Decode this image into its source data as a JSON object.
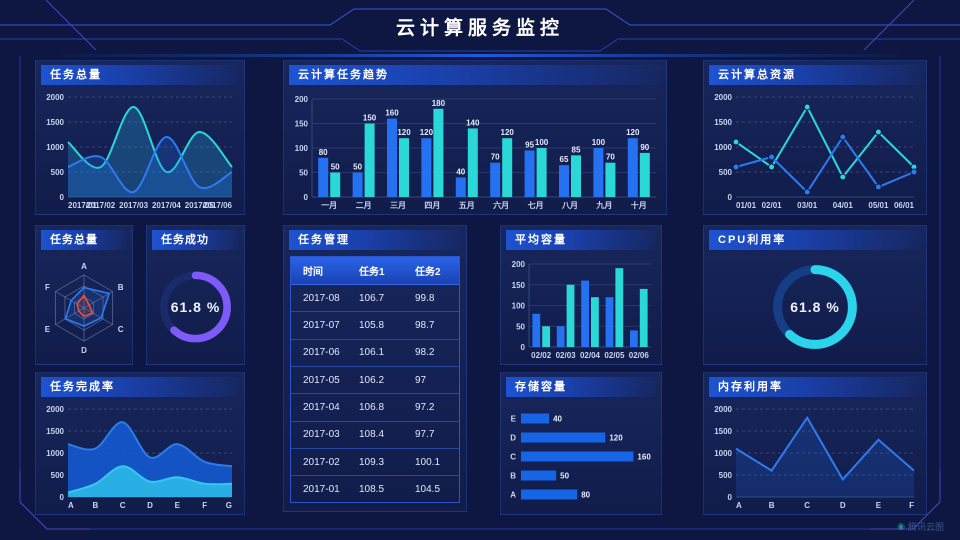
{
  "header": {
    "title": "云计算服务监控"
  },
  "watermark": {
    "label": "腾讯云图"
  },
  "panels": {
    "tasks_total_line": {
      "title": "任务总量"
    },
    "cloud_task_trend": {
      "title": "云计算任务趋势"
    },
    "cloud_total_resources": {
      "title": "云计算总资源"
    },
    "tasks_radar": {
      "title": "任务总量"
    },
    "task_success": {
      "title": "任务成功"
    },
    "task_management": {
      "title": "任务管理"
    },
    "avg_capacity": {
      "title": "平均容量"
    },
    "cpu_usage": {
      "title": "CPU利用率"
    },
    "task_completion": {
      "title": "任务完成率"
    },
    "storage_capacity": {
      "title": "存储容量"
    },
    "memory_usage": {
      "title": "内存利用率"
    }
  },
  "chart_data": [
    {
      "id": "tasks-total-line",
      "type": "line",
      "smooth": true,
      "xfont": 7,
      "x": [
        "2017/01",
        "2017/02",
        "2017/03",
        "2017/04",
        "2017/05",
        "2017/06"
      ],
      "ylim": [
        0,
        2000
      ],
      "yticks": [
        0,
        500,
        1000,
        1500,
        2000
      ],
      "series": [
        {
          "name": "cyan-series",
          "color": "#2bd8d8",
          "fill": "rgba(41,160,216,0.30)",
          "values": [
            1100,
            600,
            1800,
            500,
            1300,
            600
          ]
        },
        {
          "name": "blue-series",
          "color": "#2e7af0",
          "fill": "rgba(30,110,235,0.25)",
          "values": [
            600,
            800,
            100,
            1200,
            200,
            500
          ]
        }
      ]
    },
    {
      "id": "cloud-task-trend",
      "type": "bar",
      "labels": true,
      "categories": [
        "一月",
        "二月",
        "三月",
        "四月",
        "五月",
        "六月",
        "七月",
        "八月",
        "九月",
        "十月"
      ],
      "ylim": [
        0,
        200
      ],
      "yticks": [
        0,
        50,
        100,
        150,
        200
      ],
      "series": [
        {
          "name": "任务1",
          "color": "#2472f2",
          "values": [
            80,
            50,
            160,
            120,
            40,
            70,
            95,
            65,
            100,
            120
          ]
        },
        {
          "name": "任务2",
          "color": "#2bd8d8",
          "values": [
            50,
            150,
            120,
            180,
            140,
            120,
            100,
            85,
            70,
            90
          ]
        }
      ]
    },
    {
      "id": "cloud-total-resources",
      "type": "line",
      "smooth": false,
      "markers": true,
      "x": [
        "01/01",
        "02/01",
        "03/01",
        "04/01",
        "05/01",
        "06/01"
      ],
      "ylim": [
        0,
        2000
      ],
      "yticks": [
        0,
        500,
        1000,
        1500,
        2000
      ],
      "series": [
        {
          "name": "cyan-series",
          "color": "#2bd8d8",
          "values": [
            1100,
            600,
            1800,
            400,
            1300,
            600
          ]
        },
        {
          "name": "blue-series",
          "color": "#2e7af0",
          "values": [
            600,
            800,
            100,
            1200,
            200,
            500
          ]
        }
      ]
    },
    {
      "id": "tasks-radar",
      "type": "radar",
      "axes": [
        "A",
        "B",
        "C",
        "D",
        "E",
        "F"
      ],
      "max": 100,
      "series": [
        {
          "name": "radar-blue",
          "color": "#2d7bf2",
          "fill": "rgba(45,123,242,0.18)",
          "values": [
            62,
            88,
            60,
            55,
            65,
            45
          ]
        },
        {
          "name": "radar-red",
          "color": "#f0502e",
          "fill": "rgba(240,80,46,0.15)",
          "values": [
            38,
            18,
            30,
            26,
            18,
            24
          ]
        }
      ]
    },
    {
      "id": "task-success-donut",
      "type": "donut",
      "value": 61.8,
      "label": "61.8 %",
      "color": "#7e5bf8",
      "track": "#1b2a6b"
    },
    {
      "id": "task-table",
      "type": "table",
      "headers": [
        "时间",
        "任务1",
        "任务2"
      ],
      "rows": [
        [
          "2017-08",
          "106.7",
          "99.8"
        ],
        [
          "2017-07",
          "105.8",
          "98.7"
        ],
        [
          "2017-06",
          "106.1",
          "98.2"
        ],
        [
          "2017-05",
          "106.2",
          "97"
        ],
        [
          "2017-04",
          "106.8",
          "97.2"
        ],
        [
          "2017-03",
          "108.4",
          "97.7"
        ],
        [
          "2017-02",
          "109.3",
          "100.1"
        ],
        [
          "2017-01",
          "108.5",
          "104.5"
        ]
      ]
    },
    {
      "id": "avg-capacity",
      "type": "bar",
      "labels": false,
      "categories": [
        "02/02",
        "02/03",
        "02/04",
        "02/05",
        "02/06"
      ],
      "ylim": [
        0,
        200
      ],
      "yticks": [
        0,
        50,
        100,
        150,
        200
      ],
      "series": [
        {
          "name": "blue-series",
          "color": "#2472f2",
          "values": [
            80,
            50,
            160,
            120,
            40
          ]
        },
        {
          "name": "cyan-series",
          "color": "#2bd8d8",
          "values": [
            50,
            150,
            120,
            190,
            140
          ]
        }
      ]
    },
    {
      "id": "cpu-donut",
      "type": "donut",
      "value": 61.8,
      "label": "61.8 %",
      "color": "#2bd4ea",
      "track": "#153e86"
    },
    {
      "id": "task-completion",
      "type": "line",
      "smooth": true,
      "x": [
        "A",
        "B",
        "C",
        "D",
        "E",
        "F",
        "G"
      ],
      "ylim": [
        0,
        2000
      ],
      "yticks": [
        0,
        500,
        1000,
        1500,
        2000
      ],
      "series": [
        {
          "name": "area-blue",
          "color": "#2e7ce8",
          "fill": "#1459cf",
          "fillOpacity": 0.9,
          "values": [
            1200,
            1100,
            1700,
            900,
            1200,
            800,
            700
          ]
        },
        {
          "name": "area-cyan",
          "color": "#35c8f0",
          "fill": "#2bb4e6",
          "fillOpacity": 0.95,
          "values": [
            100,
            300,
            700,
            350,
            450,
            300,
            300
          ]
        }
      ]
    },
    {
      "id": "storage-capacity",
      "type": "hbar",
      "labels": true,
      "max": 185,
      "color": "#1565e6",
      "categories": [
        "E",
        "D",
        "C",
        "B",
        "A"
      ],
      "values": [
        40,
        120,
        160,
        50,
        80
      ]
    },
    {
      "id": "memory-utilization",
      "type": "line",
      "smooth": false,
      "x": [
        "A",
        "B",
        "C",
        "D",
        "E",
        "F"
      ],
      "ylim": [
        0,
        2000
      ],
      "yticks": [
        0,
        500,
        1000,
        1500,
        2000
      ],
      "series": [
        {
          "name": "blue-series",
          "color": "#2e7af0",
          "fill": "rgba(30,100,220,0.22)",
          "values": [
            1100,
            600,
            1800,
            400,
            1300,
            600
          ]
        }
      ]
    }
  ]
}
